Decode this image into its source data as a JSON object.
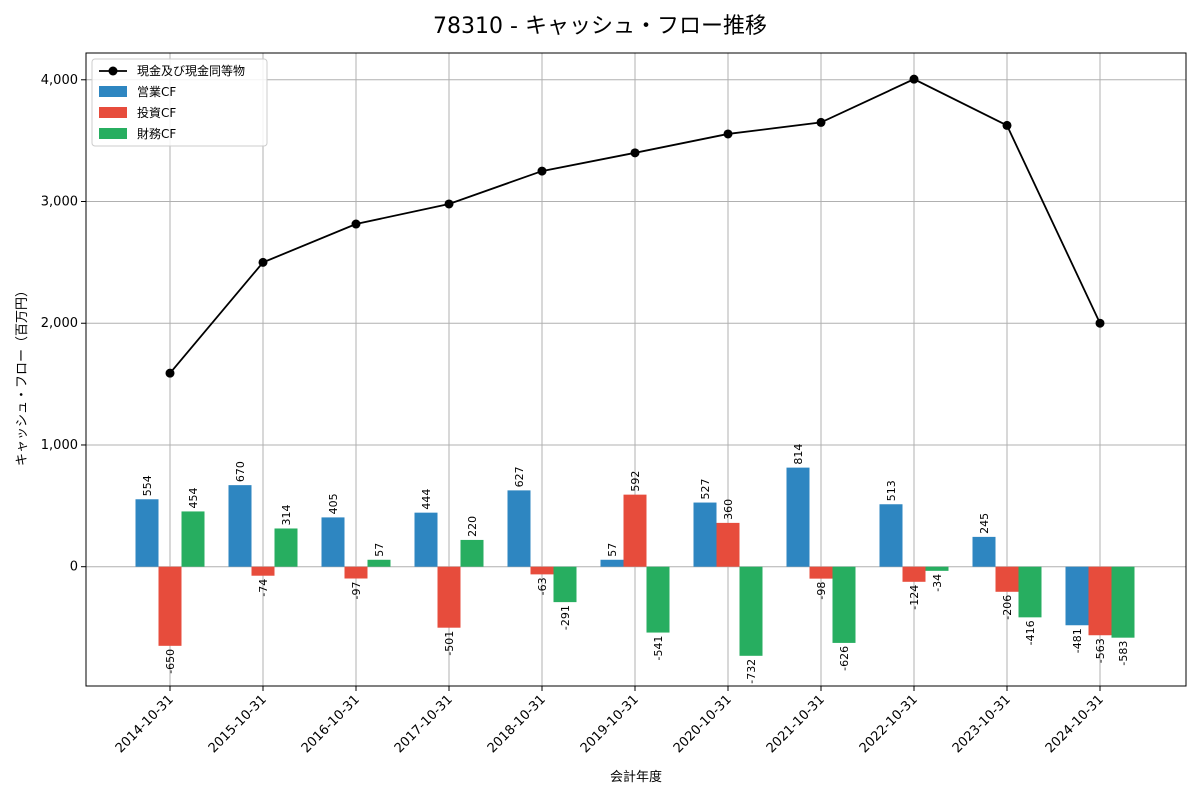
{
  "chart_data": {
    "type": "bar",
    "title": "78310 - キャッシュ・フロー推移",
    "xlabel": "会計年度",
    "ylabel": "キャッシュ・フロー（百万円）",
    "categories": [
      "2014-10-31",
      "2015-10-31",
      "2016-10-31",
      "2017-10-31",
      "2018-10-31",
      "2019-10-31",
      "2020-10-31",
      "2021-10-31",
      "2022-10-31",
      "2023-10-31",
      "2024-10-31"
    ],
    "ylim": [
      -980,
      4220
    ],
    "yticks": [
      0,
      1000,
      2000,
      3000,
      4000
    ],
    "ytick_labels": [
      "0",
      "1,000",
      "2,000",
      "3,000",
      "4,000"
    ],
    "grid": true,
    "legend_position": "top-left",
    "line_series": {
      "name": "現金及び現金同等物",
      "color": "#000000",
      "values": [
        1590,
        2500,
        2815,
        2980,
        3250,
        3400,
        3555,
        3650,
        4005,
        3625,
        2000
      ]
    },
    "series": [
      {
        "name": "営業CF",
        "color": "#2e86c1",
        "values": [
          554,
          670,
          405,
          444,
          627,
          57,
          527,
          814,
          513,
          245,
          -481
        ]
      },
      {
        "name": "投資CF",
        "color": "#e74c3c",
        "values": [
          -650,
          -74,
          -97,
          -501,
          -63,
          592,
          360,
          -98,
          -124,
          -206,
          -563
        ]
      },
      {
        "name": "財務CF",
        "color": "#27ae60",
        "values": [
          454,
          314,
          57,
          220,
          -291,
          -541,
          -732,
          -626,
          -34,
          -416,
          -583
        ]
      }
    ]
  }
}
